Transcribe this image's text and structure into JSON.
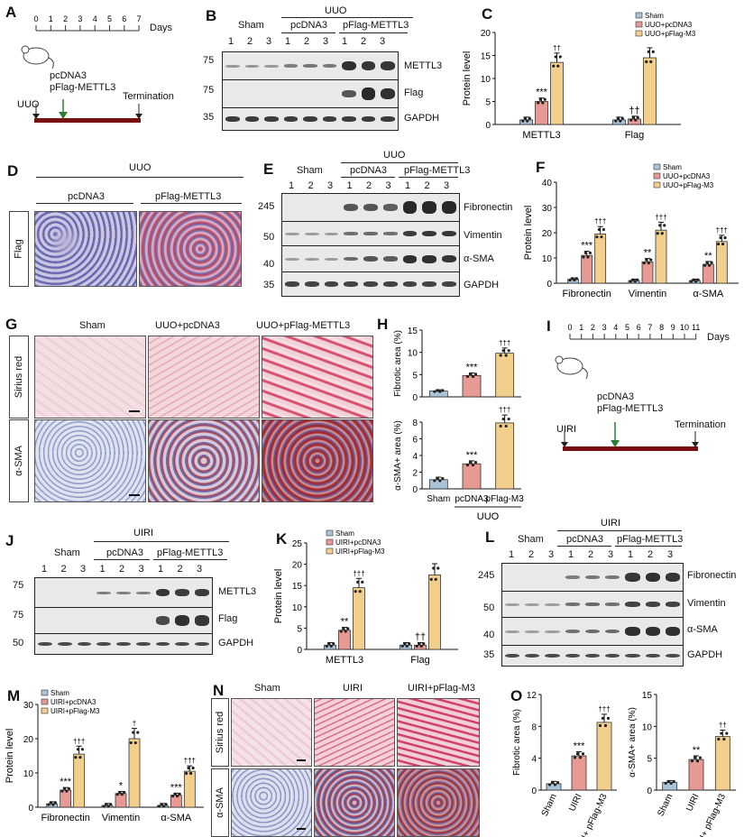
{
  "A": {
    "label": "A",
    "days_label": "Days",
    "ticks": [
      "0",
      "1",
      "2",
      "3",
      "4",
      "5",
      "6",
      "7"
    ],
    "treat1": "pcDNA3",
    "treat2": "pFlag-METTL3",
    "uuo": "UUO",
    "term": "Termination"
  },
  "B": {
    "label": "B",
    "uuo": "UUO",
    "groups": [
      "Sham",
      "pcDNA3",
      "pFlag-METTL3"
    ],
    "lanes": [
      "1",
      "2",
      "3",
      "1",
      "2",
      "3",
      "1",
      "2",
      "3"
    ],
    "rows": [
      {
        "mw": "75",
        "name": "METTL3"
      },
      {
        "mw": "75",
        "name": "Flag"
      },
      {
        "mw": "35",
        "name": "GAPDH"
      }
    ]
  },
  "C": {
    "label": "C",
    "ylabel": "Protein level",
    "legend": [
      "Sham",
      "UUO+pcDNA3",
      "UUO+pFlag-M3"
    ],
    "cats": [
      "METTL3",
      "Flag"
    ],
    "yticks": [
      "0",
      "5",
      "10",
      "15",
      "20"
    ],
    "chart_data": {
      "type": "bar",
      "categories": [
        "METTL3",
        "Flag"
      ],
      "series": [
        {
          "name": "Sham",
          "values": [
            1,
            1
          ]
        },
        {
          "name": "UUO+pcDNA3",
          "values": [
            5,
            1.2
          ]
        },
        {
          "name": "UUO+pFlag-M3",
          "values": [
            13.5,
            14.5
          ]
        }
      ],
      "ylabel": "Protein level",
      "ylim": [
        0,
        20
      ]
    },
    "sig": [
      "***",
      "††",
      "††"
    ]
  },
  "D": {
    "label": "D",
    "uuo": "UUO",
    "cols": [
      "pcDNA3",
      "pFlag-METTL3"
    ],
    "row": "Flag"
  },
  "E": {
    "label": "E",
    "uuo": "UUO",
    "groups": [
      "Sham",
      "pcDNA3",
      "pFlag-METTL3"
    ],
    "lanes": [
      "1",
      "2",
      "3",
      "1",
      "2",
      "3",
      "1",
      "2",
      "3"
    ],
    "rows": [
      {
        "mw": "245",
        "name": "Fibronectin"
      },
      {
        "mw": "50",
        "name": "Vimentin"
      },
      {
        "mw": "40",
        "name": "α-SMA"
      },
      {
        "mw": "35",
        "name": "GAPDH"
      }
    ]
  },
  "F": {
    "label": "F",
    "ylabel": "Protein level",
    "legend": [
      "Sham",
      "UUO+pcDNA3",
      "UUO+pFlag-M3"
    ],
    "cats": [
      "Fibronectin",
      "Vimentin",
      "α-SMA"
    ],
    "yticks": [
      "0",
      "10",
      "20",
      "30",
      "40"
    ],
    "chart_data": {
      "type": "bar",
      "categories": [
        "Fibronectin",
        "Vimentin",
        "α-SMA"
      ],
      "series": [
        {
          "name": "Sham",
          "values": [
            1.5,
            1,
            1
          ]
        },
        {
          "name": "UUO+pcDNA3",
          "values": [
            11,
            8.5,
            7.5
          ]
        },
        {
          "name": "UUO+pFlag-M3",
          "values": [
            19.5,
            21,
            16.5
          ]
        }
      ],
      "ylabel": "Protein level",
      "ylim": [
        0,
        40
      ]
    },
    "sig": [
      "***",
      "†††",
      "**",
      "†††",
      "**",
      "†††"
    ]
  },
  "G": {
    "label": "G",
    "cols": [
      "Sham",
      "UUO+pcDNA3",
      "UUO+pFlag-METTL3"
    ],
    "rows": [
      "Sirius red",
      "α-SMA"
    ]
  },
  "H": {
    "label": "H",
    "ylabel1": "Fibrotic area (%)",
    "ylabel2": "α-SMA+ area (%)",
    "cats": [
      "Sham",
      "pcDNA3",
      "pFlag-M3"
    ],
    "uuo": "UUO",
    "yticks1": [
      "0",
      "5",
      "10",
      "15"
    ],
    "yticks2": [
      "0",
      "2",
      "4",
      "6",
      "8"
    ],
    "chart_data": [
      {
        "type": "bar",
        "categories": [
          "Sham",
          "pcDNA3",
          "pFlag-M3"
        ],
        "values": [
          1.3,
          4.8,
          9.8
        ],
        "ylabel": "Fibrotic area (%)",
        "ylim": [
          0,
          15
        ]
      },
      {
        "type": "bar",
        "categories": [
          "Sham",
          "pcDNA3",
          "pFlag-M3"
        ],
        "values": [
          1.1,
          3.0,
          7.9
        ],
        "ylabel": "α-SMA+ area (%)",
        "ylim": [
          0,
          8
        ]
      }
    ],
    "sig1": [
      "***",
      "†††"
    ],
    "sig2": [
      "***",
      "†††"
    ]
  },
  "I": {
    "label": "I",
    "days_label": "Days",
    "ticks": [
      "0",
      "1",
      "2",
      "3",
      "4",
      "5",
      "6",
      "7",
      "8",
      "9",
      "10",
      "11"
    ],
    "treat1": "pcDNA3",
    "treat2": "pFlag-METTL3",
    "uiri": "UIRI",
    "term": "Termination"
  },
  "J": {
    "label": "J",
    "uiri": "UIRI",
    "groups": [
      "Sham",
      "pcDNA3",
      "pFlag-METTL3"
    ],
    "lanes": [
      "1",
      "2",
      "3",
      "1",
      "2",
      "3",
      "1",
      "2",
      "3"
    ],
    "rows": [
      {
        "mw": "75",
        "name": "METTL3"
      },
      {
        "mw": "75",
        "name": "Flag"
      },
      {
        "mw": "50",
        "name": "GAPDH"
      }
    ]
  },
  "K": {
    "label": "K",
    "ylabel": "Protein level",
    "legend": [
      "Sham",
      "UIRI+pcDNA3",
      "UIRI+pFlag-M3"
    ],
    "cats": [
      "METTL3",
      "Flag"
    ],
    "yticks": [
      "0",
      "5",
      "10",
      "15",
      "20",
      "25"
    ],
    "chart_data": {
      "type": "bar",
      "categories": [
        "METTL3",
        "Flag"
      ],
      "series": [
        {
          "name": "Sham",
          "values": [
            1,
            1
          ]
        },
        {
          "name": "UIRI+pcDNA3",
          "values": [
            4.5,
            1
          ]
        },
        {
          "name": "UIRI+pFlag-M3",
          "values": [
            14.5,
            17.5
          ]
        }
      ],
      "ylabel": "Protein level",
      "ylim": [
        0,
        25
      ]
    },
    "sig": [
      "**",
      "†††",
      "††"
    ]
  },
  "L": {
    "label": "L",
    "uiri": "UIRI",
    "groups": [
      "Sham",
      "pcDNA3",
      "pFlag-METTL3"
    ],
    "lanes": [
      "1",
      "2",
      "3",
      "1",
      "2",
      "3",
      "1",
      "2",
      "3"
    ],
    "rows": [
      {
        "mw": "245",
        "name": "Fibronectin"
      },
      {
        "mw": "50",
        "name": "Vimentin"
      },
      {
        "mw": "40",
        "name": "α-SMA"
      },
      {
        "mw": "35",
        "name": "GAPDH"
      }
    ]
  },
  "M": {
    "label": "M",
    "ylabel": "Protein level",
    "legend": [
      "Sham",
      "UIRI+pcDNA3",
      "UIRI+pFlag-M3"
    ],
    "cats": [
      "Fibronectin",
      "Vimentin",
      "α-SMA"
    ],
    "yticks": [
      "0",
      "10",
      "20",
      "30"
    ],
    "chart_data": {
      "type": "bar",
      "categories": [
        "Fibronectin",
        "Vimentin",
        "α-SMA"
      ],
      "series": [
        {
          "name": "Sham",
          "values": [
            1,
            0.5,
            0.5
          ]
        },
        {
          "name": "UIRI+pcDNA3",
          "values": [
            5,
            4,
            3.5
          ]
        },
        {
          "name": "UIRI+pFlag-M3",
          "values": [
            15.5,
            20,
            10.5
          ]
        }
      ],
      "ylabel": "Protein level",
      "ylim": [
        0,
        30
      ]
    },
    "sig": [
      "***",
      "†††",
      "*",
      "†",
      "***",
      "†††"
    ]
  },
  "N": {
    "label": "N",
    "cols": [
      "Sham",
      "UIRI",
      "UIRI+pFlag-M3"
    ],
    "rows": [
      "Sirius red",
      "α-SMA"
    ]
  },
  "O": {
    "label": "O",
    "ylabel1": "Fibrotic area (%)",
    "ylabel2": "α-SMA+ area (%)",
    "cats": [
      "Sham",
      "UIRI",
      "UIRI+ pFlag-M3"
    ],
    "yticks1": [
      "0",
      "4",
      "8",
      "12"
    ],
    "yticks2": [
      "0",
      "5",
      "10",
      "15"
    ],
    "chart_data": [
      {
        "type": "bar",
        "categories": [
          "Sham",
          "UIRI",
          "UIRI+pFlag-M3"
        ],
        "values": [
          0.8,
          4.3,
          8.5
        ],
        "ylabel": "Fibrotic area (%)",
        "ylim": [
          0,
          12
        ]
      },
      {
        "type": "bar",
        "categories": [
          "Sham",
          "UIRI",
          "UIRI+pFlag-M3"
        ],
        "values": [
          1.2,
          4.8,
          8.4
        ],
        "ylabel": "α-SMA+ area (%)",
        "ylim": [
          0,
          15
        ]
      }
    ],
    "sig1": [
      "***",
      "†††"
    ],
    "sig2": [
      "**",
      "††"
    ]
  },
  "colors": {
    "sham": "#a9c4d9",
    "pcdna": "#e79a94",
    "pflag": "#f2cf8c",
    "timeline": "#7a1010",
    "arrow": "#2e7d32"
  }
}
